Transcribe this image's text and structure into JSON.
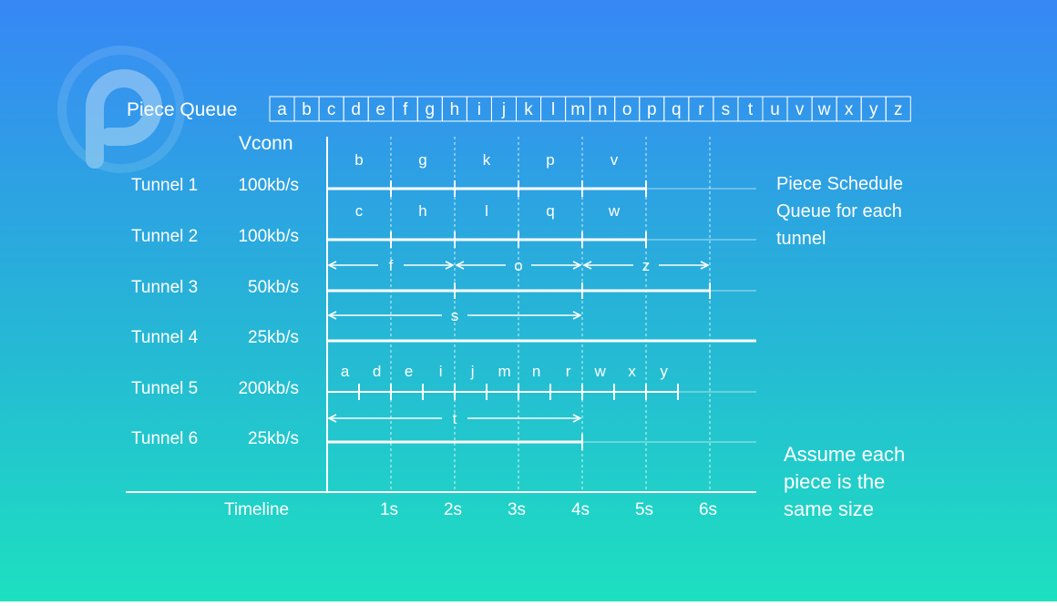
{
  "piece_queue_label": "Piece Queue",
  "piece_queue": [
    "a",
    "b",
    "c",
    "d",
    "e",
    "f",
    "g",
    "h",
    "i",
    "j",
    "k",
    "l",
    "m",
    "n",
    "o",
    "p",
    "q",
    "r",
    "s",
    "t",
    "u",
    "v",
    "w",
    "x",
    "y",
    "z"
  ],
  "vconn_label": "Vconn",
  "tunnels": [
    {
      "name": "Tunnel 1",
      "rate": "100kb/s"
    },
    {
      "name": "Tunnel 2",
      "rate": "100kb/s"
    },
    {
      "name": "Tunnel 3",
      "rate": "50kb/s"
    },
    {
      "name": "Tunnel 4",
      "rate": "25kb/s"
    },
    {
      "name": "Tunnel 5",
      "rate": "200kb/s"
    },
    {
      "name": "Tunnel 6",
      "rate": "25kb/s"
    }
  ],
  "timeline_label": "Timeline",
  "ticks": [
    "1s",
    "2s",
    "3s",
    "4s",
    "5s",
    "6s"
  ],
  "tunnel1_pieces": [
    "b",
    "g",
    "k",
    "p",
    "v"
  ],
  "tunnel2_pieces": [
    "c",
    "h",
    "l",
    "q",
    "w"
  ],
  "tunnel3_pieces": [
    "f",
    "o",
    "z"
  ],
  "tunnel4_pieces": [
    "s"
  ],
  "tunnel5_pieces": [
    "a",
    "d",
    "e",
    "i",
    "j",
    "m",
    "n",
    "r",
    "w",
    "x",
    "y"
  ],
  "tunnel6_pieces": [
    "t"
  ],
  "note_schedule": [
    "Piece Schedule",
    "Queue for each",
    "tunnel"
  ],
  "note_assume": [
    "Assume each",
    "piece is the",
    "same size"
  ],
  "colors": {
    "bg_top": "#3787f5",
    "bg_bottom": "#1de0c0",
    "ink": "#ffffff"
  },
  "logo_icon": "p-logo-icon"
}
